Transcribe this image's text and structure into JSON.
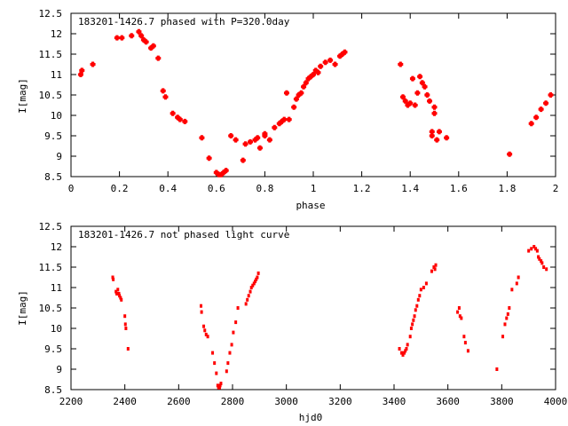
{
  "chart_data": [
    {
      "type": "scatter",
      "title": "183201-1426.7 phased with P=320.0day",
      "xlabel": "phase",
      "ylabel": "I[mag]",
      "xlim": [
        0,
        2
      ],
      "ylim": [
        12.5,
        8.5
      ],
      "y_inverted": true,
      "x_ticks": [
        "0",
        "0.2",
        "0.4",
        "0.6",
        "0.8",
        "1",
        "1.2",
        "1.4",
        "1.6",
        "1.8",
        "2"
      ],
      "y_ticks": [
        "8.5",
        "9",
        "9.5",
        "10",
        "10.5",
        "11",
        "11.5",
        "12",
        "12.5"
      ],
      "grid": false,
      "marker_color": "#ff0000",
      "marker": "plus",
      "x": [
        0.04,
        0.045,
        0.09,
        0.19,
        0.21,
        0.25,
        0.28,
        0.29,
        0.3,
        0.31,
        0.33,
        0.34,
        0.36,
        0.38,
        0.39,
        0.42,
        0.44,
        0.45,
        0.47,
        0.54,
        0.57,
        0.6,
        0.61,
        0.62,
        0.63,
        0.64,
        0.66,
        0.68,
        0.71,
        0.72,
        0.74,
        0.76,
        0.77,
        0.78,
        0.8,
        0.8,
        0.82,
        0.84,
        0.86,
        0.87,
        0.88,
        0.89,
        0.9,
        0.92,
        0.93,
        0.94,
        0.95,
        0.96,
        0.97,
        0.98,
        0.99,
        1.0,
        1.01,
        1.02,
        1.03,
        1.05,
        1.07,
        1.09,
        1.11,
        1.12,
        1.13,
        1.36,
        1.37,
        1.38,
        1.39,
        1.4,
        1.41,
        1.42,
        1.43,
        1.44,
        1.45,
        1.46,
        1.47,
        1.48,
        1.49,
        1.49,
        1.5,
        1.5,
        1.51,
        1.52,
        1.55,
        1.81,
        1.9,
        1.92,
        1.94,
        1.96,
        1.98
      ],
      "y": [
        11.0,
        11.1,
        11.25,
        11.9,
        11.9,
        11.95,
        12.05,
        11.95,
        11.85,
        11.8,
        11.65,
        11.7,
        11.4,
        10.6,
        10.45,
        10.05,
        9.95,
        9.9,
        9.85,
        9.45,
        8.95,
        8.6,
        8.55,
        8.55,
        8.6,
        8.65,
        9.5,
        9.4,
        8.9,
        9.3,
        9.35,
        9.4,
        9.45,
        9.2,
        9.5,
        9.55,
        9.4,
        9.7,
        9.8,
        9.85,
        9.9,
        10.55,
        9.9,
        10.2,
        10.4,
        10.5,
        10.55,
        10.7,
        10.8,
        10.9,
        10.95,
        11.0,
        11.1,
        11.05,
        11.2,
        11.3,
        11.35,
        11.25,
        11.45,
        11.5,
        11.55,
        11.25,
        10.45,
        10.35,
        10.25,
        10.3,
        10.9,
        10.25,
        10.55,
        10.95,
        10.8,
        10.7,
        10.5,
        10.35,
        9.6,
        9.5,
        10.2,
        10.05,
        9.4,
        9.6,
        9.45,
        9.05,
        9.8,
        9.95,
        10.15,
        10.3,
        10.5
      ]
    },
    {
      "type": "scatter",
      "title": "183201-1426.7 not phased light curve",
      "xlabel": "hjd0",
      "ylabel": "I[mag]",
      "xlim": [
        2200,
        4000
      ],
      "ylim": [
        12.5,
        8.5
      ],
      "y_inverted": true,
      "x_ticks": [
        "2200",
        "2400",
        "2600",
        "2800",
        "3000",
        "3200",
        "3400",
        "3600",
        "3800",
        "4000"
      ],
      "y_ticks": [
        "8.5",
        "9",
        "9.5",
        "10",
        "10.5",
        "11",
        "11.5",
        "12",
        "12.5"
      ],
      "grid": false,
      "marker_color": "#ff0000",
      "marker": "dot",
      "x": [
        2355,
        2357,
        2367,
        2370,
        2374,
        2378,
        2380,
        2384,
        2387,
        2400,
        2402,
        2404,
        2412,
        2683,
        2685,
        2693,
        2697,
        2702,
        2708,
        2726,
        2733,
        2740,
        2745,
        2748,
        2752,
        2754,
        2757,
        2778,
        2783,
        2790,
        2797,
        2803,
        2812,
        2820,
        2850,
        2855,
        2860,
        2866,
        2870,
        2875,
        2880,
        2884,
        2888,
        2892,
        2896,
        3420,
        3428,
        3433,
        3438,
        3442,
        3446,
        3450,
        3460,
        3464,
        3468,
        3472,
        3476,
        3480,
        3485,
        3490,
        3495,
        3500,
        3510,
        3520,
        3540,
        3548,
        3552,
        3555,
        3636,
        3642,
        3645,
        3650,
        3660,
        3665,
        3675,
        3782,
        3804,
        3812,
        3818,
        3823,
        3828,
        3838,
        3856,
        3862,
        3900,
        3910,
        3920,
        3926,
        3932,
        3936,
        3940,
        3946,
        3950,
        3956,
        3966
      ],
      "y": [
        11.25,
        11.2,
        10.9,
        10.85,
        10.95,
        10.85,
        10.8,
        10.75,
        10.7,
        10.3,
        10.1,
        10.0,
        9.5,
        10.55,
        10.4,
        10.05,
        9.95,
        9.85,
        9.8,
        9.4,
        9.15,
        8.9,
        8.6,
        8.55,
        8.55,
        8.6,
        8.65,
        8.95,
        9.15,
        9.4,
        9.6,
        9.9,
        10.15,
        10.5,
        10.6,
        10.7,
        10.8,
        10.9,
        11.0,
        11.05,
        11.1,
        11.15,
        11.2,
        11.25,
        11.35,
        9.5,
        9.4,
        9.35,
        9.4,
        9.45,
        9.5,
        9.6,
        9.8,
        10.0,
        10.1,
        10.2,
        10.3,
        10.45,
        10.55,
        10.7,
        10.8,
        10.95,
        11.0,
        11.1,
        11.4,
        11.5,
        11.45,
        11.55,
        10.4,
        10.5,
        10.3,
        10.25,
        9.8,
        9.65,
        9.45,
        9.0,
        9.8,
        10.1,
        10.25,
        10.35,
        10.5,
        10.95,
        11.1,
        11.25,
        11.9,
        11.95,
        12.0,
        11.95,
        11.9,
        11.75,
        11.7,
        11.65,
        11.6,
        11.5,
        11.45
      ]
    }
  ]
}
